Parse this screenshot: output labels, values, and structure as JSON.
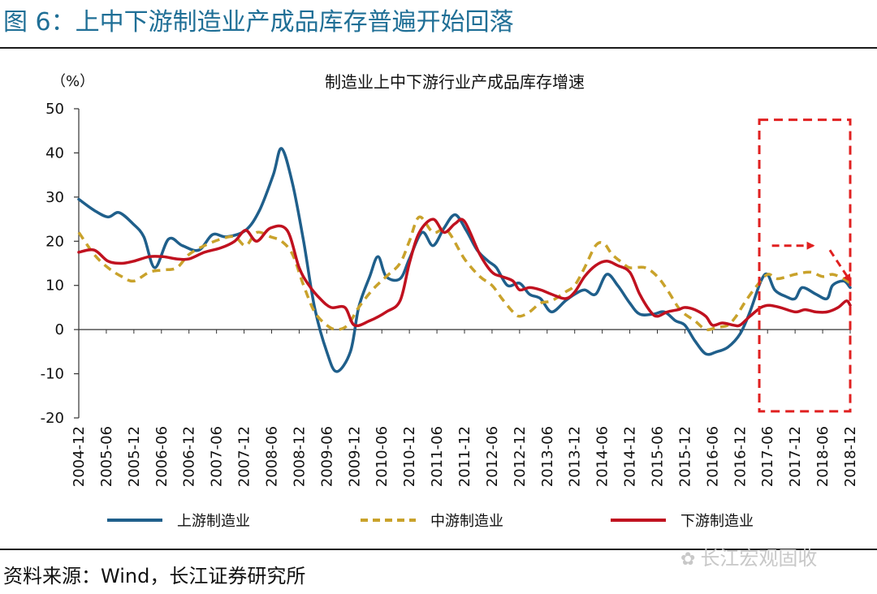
{
  "figure": {
    "title": "图 6：上中下游制造业产成品库存普遍开始回落",
    "source": "资料来源：Wind，长江证券研究所",
    "watermark": "长江宏观固收"
  },
  "chart_data": {
    "type": "line",
    "title": "制造业上中下游行业产成品库存增速",
    "ylabel": "（%）",
    "ylim": [
      -20,
      50
    ],
    "yticks": [
      50,
      40,
      30,
      20,
      10,
      0,
      -10,
      -20
    ],
    "xlim": [
      2004.92,
      2018.92
    ],
    "x_tick_labels": [
      "2004-12",
      "2005-06",
      "2005-12",
      "2006-06",
      "2006-12",
      "2007-06",
      "2007-12",
      "2008-06",
      "2008-12",
      "2009-06",
      "2009-12",
      "2010-06",
      "2010-12",
      "2011-06",
      "2011-12",
      "2012-06",
      "2012-12",
      "2013-06",
      "2013-12",
      "2014-06",
      "2014-12",
      "2015-06",
      "2015-12",
      "2016-06",
      "2016-12",
      "2017-06",
      "2017-12",
      "2018-06",
      "2018-12"
    ],
    "x_tick_values": [
      2004.92,
      2005.42,
      2005.92,
      2006.42,
      2006.92,
      2007.42,
      2007.92,
      2008.42,
      2008.92,
      2009.42,
      2009.92,
      2010.42,
      2010.92,
      2011.42,
      2011.92,
      2012.42,
      2012.92,
      2013.42,
      2013.92,
      2014.42,
      2014.92,
      2015.42,
      2015.92,
      2016.42,
      2016.92,
      2017.42,
      2017.92,
      2018.42,
      2018.92
    ],
    "series": [
      {
        "name": "上游制造业",
        "color": "#1f5f8b",
        "dash": "solid",
        "points": [
          [
            2004.92,
            29.5
          ],
          [
            2005.2,
            27
          ],
          [
            2005.45,
            25.5
          ],
          [
            2005.65,
            26.5
          ],
          [
            2005.9,
            24
          ],
          [
            2006.1,
            21
          ],
          [
            2006.3,
            14
          ],
          [
            2006.55,
            20.5
          ],
          [
            2006.8,
            19
          ],
          [
            2007.1,
            18
          ],
          [
            2007.35,
            21.5
          ],
          [
            2007.6,
            21
          ],
          [
            2007.95,
            22.5
          ],
          [
            2008.2,
            27
          ],
          [
            2008.45,
            35
          ],
          [
            2008.6,
            41
          ],
          [
            2008.8,
            33
          ],
          [
            2009.0,
            20
          ],
          [
            2009.2,
            5
          ],
          [
            2009.42,
            -5
          ],
          [
            2009.6,
            -9.5
          ],
          [
            2009.85,
            -5
          ],
          [
            2010.0,
            5
          ],
          [
            2010.2,
            12
          ],
          [
            2010.35,
            16.5
          ],
          [
            2010.5,
            12
          ],
          [
            2010.75,
            11.5
          ],
          [
            2010.92,
            16
          ],
          [
            2011.15,
            22
          ],
          [
            2011.35,
            19
          ],
          [
            2011.55,
            23
          ],
          [
            2011.75,
            26
          ],
          [
            2011.95,
            22.5
          ],
          [
            2012.15,
            18
          ],
          [
            2012.35,
            15.5
          ],
          [
            2012.5,
            14
          ],
          [
            2012.7,
            10
          ],
          [
            2012.92,
            10.5
          ],
          [
            2013.1,
            8
          ],
          [
            2013.3,
            7
          ],
          [
            2013.5,
            4
          ],
          [
            2013.75,
            6.5
          ],
          [
            2013.92,
            8
          ],
          [
            2014.1,
            9
          ],
          [
            2014.3,
            8
          ],
          [
            2014.5,
            12.5
          ],
          [
            2014.7,
            10
          ],
          [
            2014.92,
            6
          ],
          [
            2015.1,
            3.5
          ],
          [
            2015.35,
            3.5
          ],
          [
            2015.55,
            4
          ],
          [
            2015.75,
            2
          ],
          [
            2015.92,
            1
          ],
          [
            2016.1,
            -2.5
          ],
          [
            2016.3,
            -5.5
          ],
          [
            2016.5,
            -5
          ],
          [
            2016.7,
            -4
          ],
          [
            2016.92,
            -1
          ],
          [
            2017.1,
            4
          ],
          [
            2017.3,
            11
          ],
          [
            2017.42,
            12.5
          ],
          [
            2017.55,
            9
          ],
          [
            2017.75,
            7.5
          ],
          [
            2017.92,
            7
          ],
          [
            2018.05,
            9.5
          ],
          [
            2018.3,
            8
          ],
          [
            2018.5,
            7
          ],
          [
            2018.6,
            10
          ],
          [
            2018.8,
            11
          ],
          [
            2018.92,
            9.5
          ]
        ]
      },
      {
        "name": "中游制造业",
        "color": "#c9a22b",
        "dash": "dashed",
        "points": [
          [
            2004.92,
            22
          ],
          [
            2005.2,
            17
          ],
          [
            2005.45,
            14
          ],
          [
            2005.7,
            12
          ],
          [
            2005.92,
            11
          ],
          [
            2006.2,
            13
          ],
          [
            2006.45,
            13.5
          ],
          [
            2006.7,
            14
          ],
          [
            2006.92,
            17
          ],
          [
            2007.2,
            19
          ],
          [
            2007.5,
            20.5
          ],
          [
            2007.75,
            21
          ],
          [
            2007.95,
            19
          ],
          [
            2008.15,
            22
          ],
          [
            2008.4,
            21
          ],
          [
            2008.6,
            20
          ],
          [
            2008.8,
            17
          ],
          [
            2009.0,
            10
          ],
          [
            2009.2,
            4
          ],
          [
            2009.42,
            1
          ],
          [
            2009.6,
            0
          ],
          [
            2009.8,
            1
          ],
          [
            2010.0,
            5
          ],
          [
            2010.25,
            9
          ],
          [
            2010.5,
            12
          ],
          [
            2010.75,
            15
          ],
          [
            2010.92,
            20
          ],
          [
            2011.1,
            25.5
          ],
          [
            2011.35,
            22
          ],
          [
            2011.6,
            22.5
          ],
          [
            2011.92,
            16
          ],
          [
            2012.2,
            12
          ],
          [
            2012.42,
            10
          ],
          [
            2012.6,
            7
          ],
          [
            2012.8,
            4
          ],
          [
            2012.92,
            3
          ],
          [
            2013.1,
            4
          ],
          [
            2013.3,
            6
          ],
          [
            2013.5,
            6.5
          ],
          [
            2013.75,
            8.5
          ],
          [
            2013.92,
            10
          ],
          [
            2014.1,
            14
          ],
          [
            2014.3,
            19
          ],
          [
            2014.45,
            19.5
          ],
          [
            2014.6,
            17
          ],
          [
            2014.8,
            15
          ],
          [
            2014.92,
            14
          ],
          [
            2015.2,
            14
          ],
          [
            2015.42,
            12
          ],
          [
            2015.6,
            9
          ],
          [
            2015.8,
            5
          ],
          [
            2015.92,
            3.5
          ],
          [
            2016.1,
            2
          ],
          [
            2016.3,
            0
          ],
          [
            2016.5,
            0.5
          ],
          [
            2016.7,
            1
          ],
          [
            2016.85,
            3
          ],
          [
            2017.0,
            6
          ],
          [
            2017.2,
            9.5
          ],
          [
            2017.42,
            12.5
          ],
          [
            2017.6,
            11.5
          ],
          [
            2017.92,
            12.5
          ],
          [
            2018.2,
            13
          ],
          [
            2018.42,
            12
          ],
          [
            2018.6,
            12.5
          ],
          [
            2018.8,
            11.5
          ],
          [
            2018.92,
            10.5
          ]
        ]
      },
      {
        "name": "下游制造业",
        "color": "#c0111f",
        "dash": "solid",
        "points": [
          [
            2004.92,
            17.5
          ],
          [
            2005.2,
            18
          ],
          [
            2005.45,
            15.5
          ],
          [
            2005.7,
            15
          ],
          [
            2005.92,
            15.5
          ],
          [
            2006.2,
            16.5
          ],
          [
            2006.45,
            16.5
          ],
          [
            2006.7,
            16
          ],
          [
            2006.92,
            16
          ],
          [
            2007.2,
            17.5
          ],
          [
            2007.5,
            18.5
          ],
          [
            2007.75,
            20
          ],
          [
            2007.95,
            22.5
          ],
          [
            2008.15,
            20
          ],
          [
            2008.4,
            23
          ],
          [
            2008.7,
            22.5
          ],
          [
            2008.92,
            14
          ],
          [
            2009.1,
            10
          ],
          [
            2009.3,
            7
          ],
          [
            2009.5,
            5
          ],
          [
            2009.75,
            5
          ],
          [
            2009.92,
            1
          ],
          [
            2010.2,
            2
          ],
          [
            2010.5,
            4
          ],
          [
            2010.75,
            6.5
          ],
          [
            2010.92,
            15
          ],
          [
            2011.1,
            22
          ],
          [
            2011.35,
            25
          ],
          [
            2011.55,
            22
          ],
          [
            2011.75,
            24
          ],
          [
            2011.92,
            24.5
          ],
          [
            2012.2,
            17
          ],
          [
            2012.42,
            13
          ],
          [
            2012.6,
            12
          ],
          [
            2012.8,
            11
          ],
          [
            2012.92,
            9
          ],
          [
            2013.1,
            9.5
          ],
          [
            2013.3,
            9
          ],
          [
            2013.5,
            8
          ],
          [
            2013.75,
            7
          ],
          [
            2013.92,
            8.5
          ],
          [
            2014.1,
            12
          ],
          [
            2014.3,
            14.5
          ],
          [
            2014.5,
            15.5
          ],
          [
            2014.7,
            14.5
          ],
          [
            2014.92,
            13
          ],
          [
            2015.1,
            8
          ],
          [
            2015.3,
            4
          ],
          [
            2015.42,
            3
          ],
          [
            2015.6,
            4
          ],
          [
            2015.8,
            4.5
          ],
          [
            2015.92,
            5
          ],
          [
            2016.1,
            4.5
          ],
          [
            2016.3,
            3
          ],
          [
            2016.42,
            1
          ],
          [
            2016.6,
            1.5
          ],
          [
            2016.8,
            1
          ],
          [
            2016.92,
            1
          ],
          [
            2017.1,
            3
          ],
          [
            2017.3,
            5
          ],
          [
            2017.45,
            5.5
          ],
          [
            2017.65,
            5
          ],
          [
            2017.92,
            4
          ],
          [
            2018.1,
            4.5
          ],
          [
            2018.3,
            4
          ],
          [
            2018.5,
            4
          ],
          [
            2018.7,
            5
          ],
          [
            2018.85,
            6.5
          ],
          [
            2018.92,
            5.5
          ]
        ]
      }
    ],
    "annotations": [
      {
        "type": "dashed-box",
        "color": "#e02020",
        "x0": 2017.27,
        "x1": 2018.92,
        "y0": -18.5,
        "y1": 47.5
      },
      {
        "type": "dashed-arrow",
        "color": "#e02020",
        "from": [
          2017.5,
          19
        ],
        "to": [
          2018.25,
          19
        ]
      },
      {
        "type": "dashed-arrow",
        "color": "#e02020",
        "from": [
          2018.55,
          18
        ],
        "to": [
          2018.92,
          11
        ]
      }
    ]
  }
}
